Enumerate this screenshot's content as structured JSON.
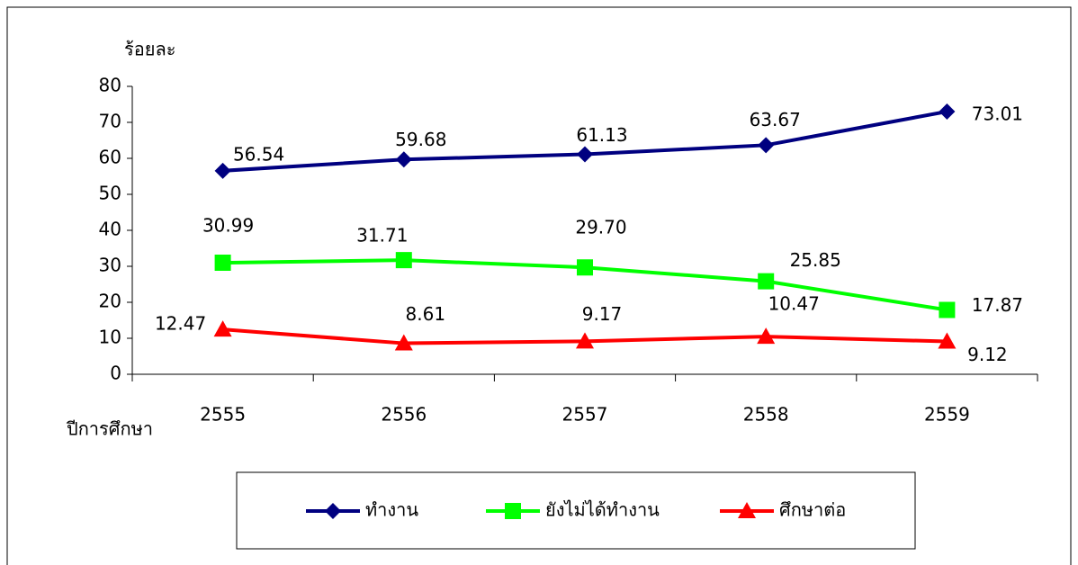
{
  "chart_data": {
    "type": "line",
    "y_label": "ร้อยละ",
    "x_label": "ปีการศึกษา",
    "categories": [
      "2555",
      "2556",
      "2557",
      "2558",
      "2559"
    ],
    "series": [
      {
        "name": "ทำงาน",
        "color": "#000080",
        "marker": "diamond",
        "values": [
          56.54,
          59.68,
          61.13,
          63.67,
          73.01
        ],
        "value_labels": [
          "56.54",
          "59.68",
          "61.13",
          "63.67",
          "73.01"
        ]
      },
      {
        "name": "ยังไม่ได้ทำงาน",
        "color": "#00ff00",
        "marker": "square",
        "values": [
          30.99,
          31.71,
          29.7,
          25.85,
          17.87
        ],
        "value_labels": [
          "30.99",
          "31.71",
          "29.70",
          "25.85",
          "17.87"
        ]
      },
      {
        "name": "ศึกษาต่อ",
        "color": "#ff0000",
        "marker": "triangle",
        "values": [
          12.47,
          8.61,
          9.17,
          10.47,
          9.12
        ],
        "value_labels": [
          "12.47",
          "8.61",
          "9.17",
          "10.47",
          "9.12"
        ]
      }
    ],
    "ylim": [
      0,
      80
    ],
    "yticks": [
      0,
      10,
      20,
      30,
      40,
      50,
      60,
      70,
      80
    ],
    "legend": "bottom"
  }
}
